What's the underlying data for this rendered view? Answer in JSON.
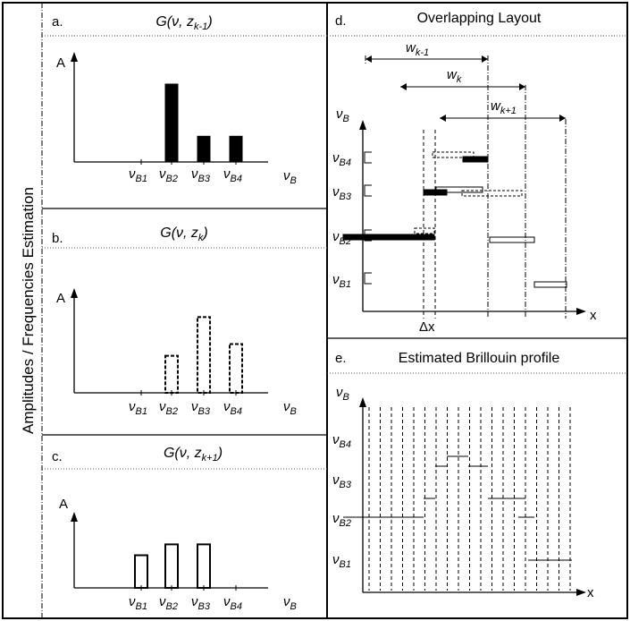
{
  "side_label": "Amplitudes / Frequencies Estimation",
  "panels": {
    "a": {
      "letter": "a.",
      "title": "G(ν, z",
      "sub": "k-1",
      "close": ")"
    },
    "b": {
      "letter": "b.",
      "title": "G(ν, z",
      "sub": "k",
      "close": ")"
    },
    "c": {
      "letter": "c.",
      "title": "G(ν, z",
      "sub": "k+1",
      "close": ")"
    },
    "d": {
      "letter": "d.",
      "title": "Overlapping Layout"
    },
    "e": {
      "letter": "e.",
      "title": "Estimated Brillouin profile"
    }
  },
  "axis": {
    "amp": "A",
    "nu_main": "ν",
    "nu_sub": "B",
    "x": "x",
    "delta_x": "Δx"
  },
  "ticks": [
    {
      "main": "ν",
      "sub": "B1"
    },
    {
      "main": "ν",
      "sub": "B2"
    },
    {
      "main": "ν",
      "sub": "B3"
    },
    {
      "main": "ν",
      "sub": "B4"
    }
  ],
  "windows": [
    {
      "main": "w",
      "sub": "k-1"
    },
    {
      "main": "w",
      "sub": "k"
    },
    {
      "main": "w",
      "sub": "k+1"
    }
  ],
  "chart_data": [
    {
      "panel": "a",
      "type": "bar",
      "style": "solid",
      "categories": [
        "νB1",
        "νB2",
        "νB3",
        "νB4"
      ],
      "values": [
        0,
        1.0,
        0.33,
        0.33
      ]
    },
    {
      "panel": "b",
      "type": "bar",
      "style": "dashed",
      "categories": [
        "νB1",
        "νB2",
        "νB3",
        "νB4"
      ],
      "values": [
        0,
        0.44,
        0.9,
        0.58
      ]
    },
    {
      "panel": "c",
      "type": "bar",
      "style": "outline",
      "categories": [
        "νB1",
        "νB2",
        "νB3",
        "νB4"
      ],
      "values": [
        0.48,
        0.64,
        0.64,
        0
      ]
    }
  ]
}
